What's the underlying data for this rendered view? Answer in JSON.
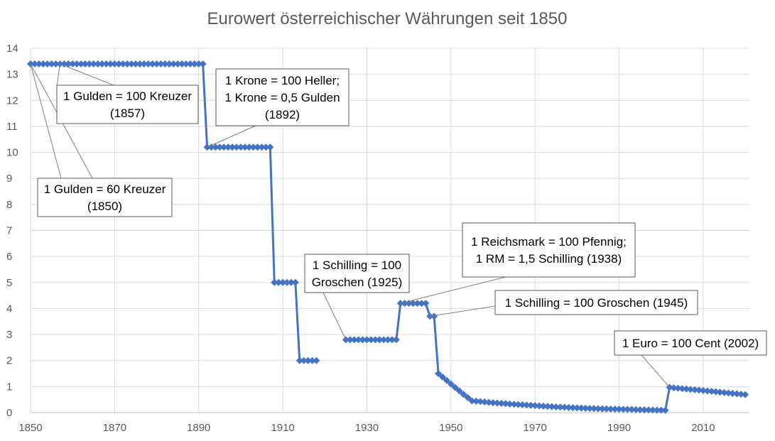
{
  "chart_data": {
    "type": "line",
    "title": "Eurowert österreichischer Währungen seit 1850",
    "xlabel": "",
    "ylabel": "",
    "xlim": [
      1850,
      2021
    ],
    "ylim": [
      0,
      14
    ],
    "x_ticks": [
      "1850",
      "1870",
      "1890",
      "1910",
      "1930",
      "1950",
      "1970",
      "1990",
      "2010"
    ],
    "y_ticks": [
      "0",
      "1",
      "2",
      "3",
      "4",
      "5",
      "6",
      "7",
      "8",
      "9",
      "10",
      "11",
      "12",
      "13",
      "14"
    ],
    "grid": true,
    "legend": "none",
    "color": "#4472c4",
    "segments": [
      {
        "x": [
          1850,
          1891
        ],
        "y": [
          13.4,
          13.4
        ],
        "step": 1
      },
      {
        "x": [
          1892,
          1907
        ],
        "y": [
          10.2,
          10.2
        ],
        "step": 1
      },
      {
        "x": [
          1908,
          1913
        ],
        "y": [
          5.0,
          5.0
        ],
        "step": 1
      },
      {
        "x": [
          1914,
          1918
        ],
        "y": [
          2.0,
          2.0
        ],
        "step": 1
      },
      {
        "x": [
          1925,
          1937
        ],
        "y": [
          2.8,
          2.8
        ],
        "step": 1
      },
      {
        "x": [
          1938,
          1944
        ],
        "y": [
          4.2,
          4.2
        ],
        "step": 1
      },
      {
        "x": [
          1945,
          1946
        ],
        "y": [
          3.7,
          3.7
        ],
        "step": 1
      },
      {
        "x": [
          1947,
          1950,
          1953,
          1955,
          1960,
          1965,
          1970,
          1975,
          1980,
          1985,
          1990,
          1995,
          2001
        ],
        "y": [
          1.5,
          1.1,
          0.7,
          0.45,
          0.38,
          0.32,
          0.27,
          0.22,
          0.18,
          0.15,
          0.13,
          0.11,
          0.09
        ],
        "step": 1
      },
      {
        "x": [
          2002,
          2005,
          2010,
          2015,
          2020
        ],
        "y": [
          0.97,
          0.92,
          0.85,
          0.77,
          0.69
        ],
        "step": 1
      }
    ],
    "annotations": [
      {
        "lines": [
          "1 Gulden = 60 Kreuzer",
          "(1850)"
        ],
        "point": [
          1850,
          13.4
        ]
      },
      {
        "lines": [
          "1 Gulden = 100 Kreuzer",
          "(1857)"
        ],
        "point": [
          1857,
          13.4
        ]
      },
      {
        "lines": [
          "1 Krone = 100 Heller;",
          "1 Krone = 0,5 Gulden",
          "(1892)"
        ],
        "point": [
          1892,
          10.2
        ]
      },
      {
        "lines": [
          "1 Schilling = 100",
          "Groschen (1925)"
        ],
        "point": [
          1925,
          2.8
        ]
      },
      {
        "lines": [
          "1 Reichsmark = 100 Pfennig;",
          "1 RM = 1,5 Schilling (1938)"
        ],
        "point": [
          1938,
          4.2
        ]
      },
      {
        "lines": [
          "1 Schilling = 100 Groschen (1945)"
        ],
        "point": [
          1945,
          3.7
        ]
      },
      {
        "lines": [
          "1 Euro = 100 Cent (2002)"
        ],
        "point": [
          2002,
          0.97
        ]
      }
    ]
  }
}
